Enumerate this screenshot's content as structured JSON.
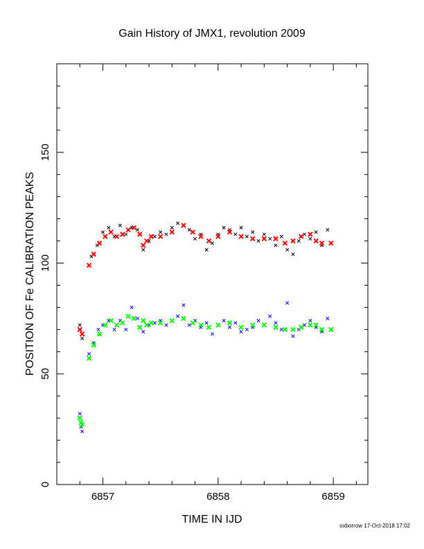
{
  "chart_data": {
    "type": "scatter",
    "title": "Gain History of JMX1, revolution 2009",
    "xlabel": "TIME IN IJD",
    "ylabel": "POSITION OF Fe CALIBRATION PEAKS",
    "xlim": [
      6856.6,
      6859.3
    ],
    "ylim": [
      0,
      190
    ],
    "x_ticks": [
      6857,
      6858,
      6859
    ],
    "y_ticks": [
      0,
      50,
      100,
      150
    ],
    "grid": false,
    "legend": "none",
    "footer": "oxborrow 17-Oct-2018 17:02",
    "series": [
      {
        "marker": "x",
        "color": "#000000",
        "x": [
          6856.8,
          6856.82,
          6856.9,
          6856.95,
          6857.0,
          6857.05,
          6857.1,
          6857.15,
          6857.2,
          6857.25,
          6857.3,
          6857.35,
          6857.4,
          6857.45,
          6857.5,
          6857.55,
          6857.6,
          6857.65,
          6857.7,
          6857.75,
          6857.8,
          6857.85,
          6857.9,
          6857.95,
          6858.0,
          6858.05,
          6858.1,
          6858.15,
          6858.2,
          6858.25,
          6858.3,
          6858.35,
          6858.4,
          6858.45,
          6858.5,
          6858.55,
          6858.6,
          6858.65,
          6858.7,
          6858.75,
          6858.8,
          6858.85,
          6858.9,
          6858.95
        ],
        "y": [
          72,
          66,
          103,
          108,
          114,
          116,
          112,
          117,
          113,
          116,
          115,
          106,
          110,
          112,
          114,
          113,
          116,
          118,
          117,
          115,
          111,
          113,
          106,
          109,
          113,
          116,
          115,
          113,
          116,
          112,
          114,
          110,
          113,
          111,
          108,
          112,
          106,
          104,
          110,
          113,
          111,
          114,
          108,
          115
        ]
      },
      {
        "marker": "x",
        "color": "#ff0000",
        "x": [
          6856.8,
          6856.82,
          6856.88,
          6856.92,
          6856.97,
          6857.02,
          6857.07,
          6857.12,
          6857.17,
          6857.22,
          6857.27,
          6857.32,
          6857.35,
          6857.38,
          6857.42,
          6857.5,
          6857.6,
          6857.7,
          6857.78,
          6857.85,
          6857.92,
          6858.0,
          6858.1,
          6858.2,
          6858.3,
          6858.4,
          6858.5,
          6858.58,
          6858.65,
          6858.72,
          6858.8,
          6858.85,
          6858.9,
          6858.98
        ],
        "y": [
          70,
          68,
          99,
          104,
          109,
          112,
          114,
          112,
          113,
          115,
          116,
          113,
          108,
          110,
          112,
          112,
          114,
          117,
          114,
          112,
          110,
          112,
          114,
          112,
          111,
          111,
          111,
          109,
          110,
          112,
          113,
          110,
          109,
          109
        ]
      },
      {
        "marker": "x",
        "color": "#0000ff",
        "x": [
          6856.8,
          6856.81,
          6856.82,
          6856.88,
          6856.92,
          6856.96,
          6857.0,
          6857.05,
          6857.1,
          6857.15,
          6857.2,
          6857.25,
          6857.3,
          6857.35,
          6857.4,
          6857.45,
          6857.5,
          6857.55,
          6857.6,
          6857.65,
          6857.7,
          6857.75,
          6857.8,
          6857.85,
          6857.9,
          6857.95,
          6858.0,
          6858.05,
          6858.1,
          6858.15,
          6858.2,
          6858.25,
          6858.3,
          6858.35,
          6858.4,
          6858.45,
          6858.5,
          6858.55,
          6858.6,
          6858.65,
          6858.7,
          6858.75,
          6858.8,
          6858.85,
          6858.9,
          6858.95
        ],
        "y": [
          32,
          26,
          24,
          59,
          64,
          70,
          72,
          74,
          70,
          74,
          70,
          80,
          75,
          69,
          72,
          73,
          74,
          72,
          74,
          76,
          81,
          72,
          74,
          71,
          73,
          68,
          72,
          74,
          71,
          73,
          69,
          70,
          71,
          74,
          72,
          76,
          73,
          70,
          82,
          67,
          70,
          72,
          74,
          71,
          69,
          75
        ]
      },
      {
        "marker": "x",
        "color": "#00ff00",
        "x": [
          6856.8,
          6856.81,
          6856.82,
          6856.88,
          6856.92,
          6856.97,
          6857.02,
          6857.07,
          6857.12,
          6857.17,
          6857.22,
          6857.27,
          6857.32,
          6857.35,
          6857.38,
          6857.42,
          6857.5,
          6857.6,
          6857.7,
          6857.78,
          6857.85,
          6857.92,
          6858.0,
          6858.1,
          6858.2,
          6858.3,
          6858.4,
          6858.5,
          6858.58,
          6858.65,
          6858.72,
          6858.8,
          6858.85,
          6858.9,
          6858.98
        ],
        "y": [
          30,
          28,
          27,
          57,
          63,
          68,
          72,
          74,
          72,
          73,
          76,
          75,
          71,
          74,
          72,
          73,
          73,
          74,
          75,
          73,
          72,
          71,
          72,
          73,
          71,
          72,
          72,
          71,
          70,
          70,
          71,
          72,
          72,
          70,
          70
        ]
      }
    ]
  }
}
